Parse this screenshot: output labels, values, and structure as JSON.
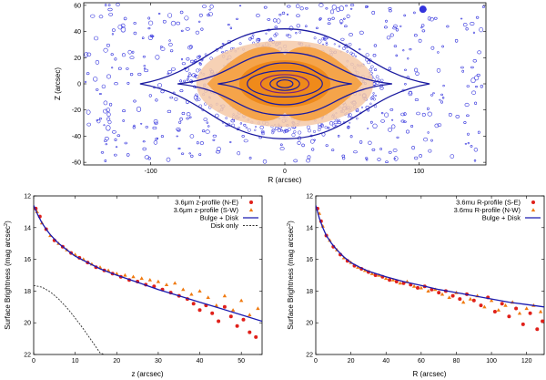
{
  "chart_data": [
    {
      "type": "contour",
      "title": "",
      "xlabel": "R (arcsec)",
      "ylabel": "Z (arcsec)",
      "xlim": [
        -150,
        150
      ],
      "ylim": [
        -62,
        62
      ],
      "xticks": [
        -100,
        0,
        100
      ],
      "yticks": [
        -60,
        -40,
        -20,
        0,
        20,
        40,
        60
      ],
      "xtick_labels": [
        "-100",
        "0",
        "100"
      ],
      "ytick_labels": [
        "-60",
        "-40",
        "-20",
        "0",
        "20",
        "40",
        "60"
      ],
      "contour_half_extents": [
        {
          "r": 108,
          "z": 42
        },
        {
          "r": 80,
          "z": 24
        },
        {
          "r": 50,
          "z": 16
        },
        {
          "r": 28,
          "z": 10
        },
        {
          "r": 18,
          "z": 7
        },
        {
          "r": 11,
          "z": 5
        },
        {
          "r": 6,
          "z": 3
        }
      ],
      "colors": {
        "contour": "#1a1aa0",
        "noise": "#3333dd",
        "fill_outer": "#f4c9a8",
        "fill_mid": "#f5a44a",
        "fill_core": "#ef8a1a"
      }
    },
    {
      "type": "scatter",
      "title": "",
      "xlabel": "z (arcsec)",
      "ylabel": "Surface Brightness (mag arcsec",
      "ylabel_sup": "2",
      "ylabel_close": ")",
      "xlim": [
        0,
        55
      ],
      "ylim": [
        12,
        22
      ],
      "y_inverted": true,
      "xticks": [
        0,
        10,
        20,
        30,
        40,
        50
      ],
      "yticks": [
        12,
        14,
        16,
        18,
        20,
        22
      ],
      "xtick_labels": [
        "0",
        "10",
        "20",
        "30",
        "40",
        "50"
      ],
      "ytick_labels": [
        "12",
        "14",
        "16",
        "18",
        "20",
        "22"
      ],
      "legend_position": "top-right",
      "series": [
        {
          "name": "3.6μm z-profile (N-E)",
          "marker": "circle",
          "color": "#e0201a",
          "x": [
            0.5,
            1.5,
            3,
            5,
            7,
            9,
            11,
            13,
            15,
            17,
            19,
            21,
            23,
            25,
            27,
            29,
            31,
            33,
            35,
            37,
            38.5,
            40,
            41.5,
            43,
            44.5,
            46,
            47.5,
            49,
            50.5,
            52,
            53.5
          ],
          "y": [
            12.8,
            13.3,
            14.1,
            14.8,
            15.2,
            15.6,
            15.9,
            16.2,
            16.5,
            16.7,
            16.9,
            17.1,
            17.3,
            17.4,
            17.6,
            17.7,
            17.9,
            18.1,
            18.3,
            18.5,
            18.8,
            19.2,
            18.9,
            19.4,
            19.9,
            19.0,
            19.6,
            20.2,
            19.8,
            20.6,
            20.9
          ]
        },
        {
          "name": "3.6μm z-profile (S-W)",
          "marker": "triangle",
          "color": "#f07a10",
          "x": [
            0.8,
            2,
            4,
            6,
            8,
            10,
            12,
            14,
            16,
            18,
            20,
            22,
            24,
            26,
            28,
            30,
            32,
            34,
            36,
            38,
            40,
            42,
            44,
            46,
            48,
            50,
            52,
            54
          ],
          "y": [
            13.0,
            13.7,
            14.5,
            15.0,
            15.4,
            15.7,
            16.0,
            16.3,
            16.5,
            16.7,
            16.9,
            17.0,
            17.1,
            17.2,
            17.3,
            17.4,
            17.6,
            17.5,
            17.9,
            18.2,
            18.0,
            18.4,
            18.9,
            18.3,
            19.2,
            18.6,
            19.5,
            19.1
          ]
        },
        {
          "name": "Bulge + Disk",
          "type": "line",
          "color": "#1a1ab0",
          "x": [
            0,
            1,
            2,
            3,
            4,
            6,
            8,
            10,
            13,
            16,
            20,
            25,
            30,
            35,
            40,
            45,
            50,
            55
          ],
          "y": [
            12.6,
            13.2,
            13.7,
            14.1,
            14.45,
            15.0,
            15.4,
            15.8,
            16.2,
            16.6,
            17.0,
            17.45,
            17.9,
            18.3,
            18.7,
            19.1,
            19.5,
            19.9
          ]
        },
        {
          "name": "Disk only",
          "type": "line",
          "dash": true,
          "color": "#333333",
          "x": [
            0,
            2,
            4,
            6,
            8,
            10,
            12,
            14,
            16,
            17
          ],
          "y": [
            17.65,
            17.75,
            18.05,
            18.5,
            19.05,
            19.7,
            20.4,
            21.15,
            21.9,
            22.0
          ]
        }
      ]
    },
    {
      "type": "scatter",
      "title": "",
      "xlabel": "R (arcsec)",
      "ylabel": "Surface Brightness (mag arcsec",
      "ylabel_sup": "2",
      "ylabel_close": ")",
      "xlim": [
        0,
        130
      ],
      "ylim": [
        12,
        22
      ],
      "y_inverted": true,
      "xticks": [
        0,
        20,
        40,
        60,
        80,
        100,
        120
      ],
      "yticks": [
        12,
        14,
        16,
        18,
        20,
        22
      ],
      "xtick_labels": [
        "0",
        "20",
        "40",
        "60",
        "80",
        "100",
        "120"
      ],
      "ytick_labels": [
        "12",
        "14",
        "16",
        "18",
        "20",
        "22"
      ],
      "legend_position": "top-right",
      "series": [
        {
          "name": "3.6mu R-profile (S-E)",
          "marker": "circle",
          "color": "#e0201a",
          "x": [
            1,
            3,
            6,
            10,
            14,
            18,
            22,
            26,
            30,
            34,
            38,
            42,
            46,
            50,
            54,
            58,
            62,
            66,
            70,
            74,
            78,
            82,
            86,
            90,
            94,
            98,
            102,
            106,
            110,
            114,
            118,
            122,
            126,
            129
          ],
          "y": [
            12.8,
            13.6,
            14.5,
            15.2,
            15.7,
            16.1,
            16.4,
            16.6,
            16.8,
            17.0,
            17.1,
            17.3,
            17.4,
            17.5,
            17.6,
            17.8,
            17.7,
            17.9,
            18.1,
            18.0,
            18.3,
            18.5,
            18.2,
            18.6,
            18.9,
            18.4,
            19.3,
            18.8,
            19.6,
            19.1,
            20.1,
            19.4,
            20.4,
            19.9
          ]
        },
        {
          "name": "3.6mu R-profile (N-W)",
          "marker": "triangle",
          "color": "#f07a10",
          "x": [
            2,
            4,
            8,
            12,
            16,
            20,
            24,
            28,
            32,
            36,
            40,
            44,
            48,
            52,
            56,
            60,
            64,
            68,
            72,
            76,
            80,
            84,
            88,
            92,
            96,
            100,
            104,
            108,
            112,
            116,
            120,
            124,
            128
          ],
          "y": [
            13.1,
            13.9,
            14.8,
            15.4,
            15.9,
            16.2,
            16.5,
            16.7,
            16.9,
            17.0,
            17.2,
            17.3,
            17.5,
            17.4,
            17.7,
            17.8,
            18.0,
            17.9,
            18.2,
            18.4,
            18.1,
            18.7,
            18.5,
            18.3,
            19.0,
            18.6,
            19.2,
            18.9,
            18.7,
            19.4,
            19.1,
            18.9,
            19.3
          ]
        },
        {
          "name": "Bulge + Disk",
          "type": "line",
          "color": "#1a1ab0",
          "x": [
            0,
            2,
            4,
            6,
            9,
            12,
            16,
            20,
            25,
            30,
            40,
            50,
            60,
            70,
            80,
            90,
            100,
            110,
            120,
            130
          ],
          "y": [
            12.6,
            13.4,
            14.0,
            14.5,
            15.0,
            15.4,
            15.85,
            16.2,
            16.5,
            16.75,
            17.1,
            17.4,
            17.65,
            17.9,
            18.1,
            18.3,
            18.5,
            18.7,
            18.85,
            19.0
          ]
        }
      ]
    }
  ]
}
